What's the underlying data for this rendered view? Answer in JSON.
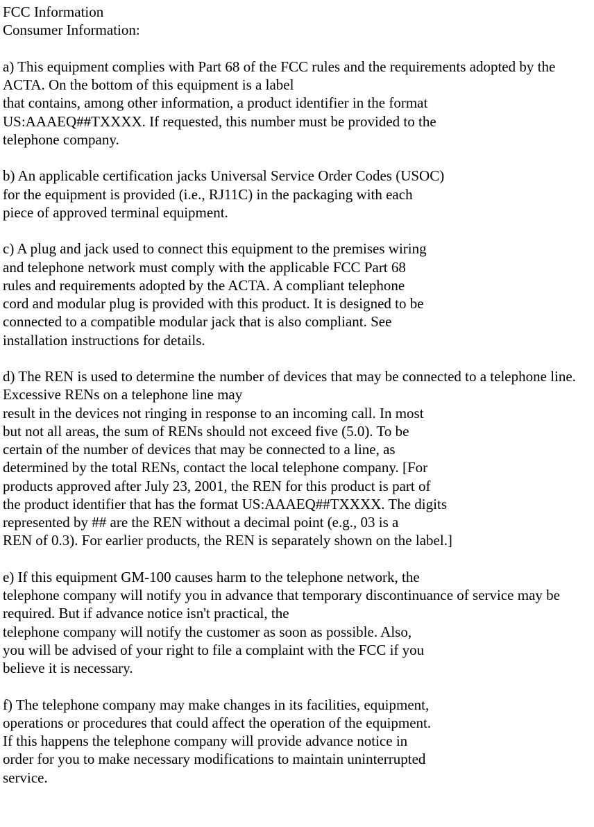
{
  "header": {
    "title": "FCC Information",
    "subtitle": "Consumer Information:"
  },
  "sections": {
    "a": [
      "a) This equipment complies with Part 68 of the FCC rules and the requirements adopted by the ACTA. On the bottom of this equipment is a label",
      "that contains, among other information, a product identifier in the format",
      "US:AAAEQ##TXXXX. If requested, this number must be provided to the",
      "telephone company."
    ],
    "b": [
      "b) An applicable certification jacks Universal Service Order Codes (USOC)",
      "for the equipment is provided (i.e., RJ11C) in the packaging with each",
      "piece of approved terminal equipment."
    ],
    "c": [
      "c) A plug and jack used to connect this equipment to the premises wiring",
      "and telephone network must comply with the applicable FCC Part 68",
      "rules and requirements adopted by the ACTA. A compliant telephone",
      "cord and modular plug is provided with this product. It is designed to be",
      "connected to a compatible modular jack that is also compliant. See",
      "installation instructions for details."
    ],
    "d": [
      "d) The REN is used to determine the number of devices that may be connected to a telephone line. Excessive RENs on a telephone line may",
      "result in the devices not ringing in response to an incoming call. In most",
      "but not all areas, the sum of RENs should not exceed five (5.0). To be",
      "certain of the number of devices that may be connected to a line, as",
      "determined by the total RENs, contact the local telephone company. [For",
      "products approved after July 23, 2001, the REN for this product is part of",
      "the product identifier that has the format US:AAAEQ##TXXXX. The digits",
      "represented by ## are the REN without a decimal point (e.g., 03 is a",
      "REN of 0.3). For earlier products, the REN is separately shown on the label.]"
    ],
    "e": [
      "e) If this equipment GM-100 causes harm to the telephone network, the",
      "telephone company will notify you in advance that temporary discontinuance of service may be required. But if advance notice isn't practical, the",
      "telephone company will notify the customer as soon as possible. Also,",
      "you will be advised of your right to file a complaint with the FCC if you",
      "believe it is necessary."
    ],
    "f": [
      "f) The telephone company may make changes in its facilities, equipment,",
      "operations or procedures that could affect the operation of the equipment.",
      "If this happens the telephone company will provide advance notice in",
      "order for you to make necessary modifications to maintain uninterrupted",
      "service."
    ]
  }
}
